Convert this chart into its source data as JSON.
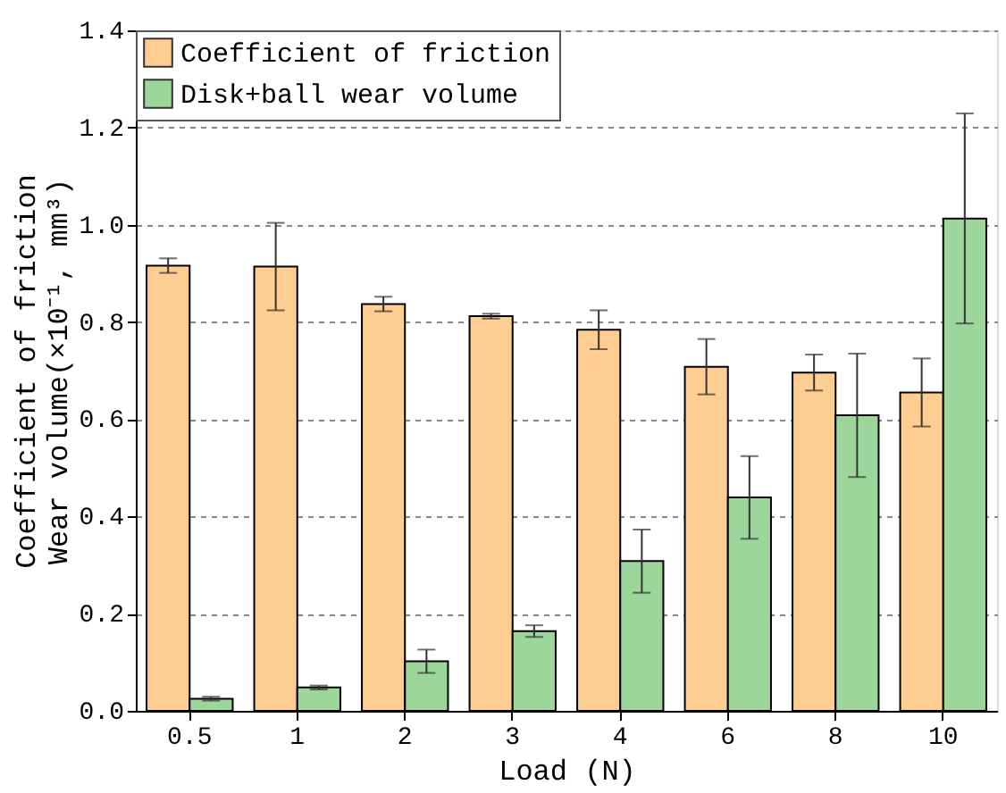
{
  "chart_data": {
    "type": "bar",
    "xlabel": "Load (N)",
    "ylabel": "Coefficient of friction\nWear volume(×10⁻¹, mm³)",
    "categories": [
      "0.5",
      "1",
      "2",
      "3",
      "4",
      "6",
      "8",
      "10"
    ],
    "series": [
      {
        "name": "Coefficient of friction",
        "color": "#fdcd92",
        "values": [
          0.916,
          0.914,
          0.837,
          0.812,
          0.784,
          0.708,
          0.696,
          0.655
        ],
        "errors": [
          0.015,
          0.09,
          0.015,
          0.005,
          0.04,
          0.057,
          0.037,
          0.07
        ]
      },
      {
        "name": "Disk+ball wear volume",
        "color": "#9dd69a",
        "values": [
          0.025,
          0.048,
          0.102,
          0.164,
          0.308,
          0.439,
          0.608,
          1.013
        ],
        "errors": [
          0.004,
          0.004,
          0.024,
          0.012,
          0.065,
          0.085,
          0.127,
          0.216
        ]
      }
    ],
    "ylim": [
      0,
      1.4
    ],
    "yticks": [
      {
        "value": 0,
        "label": "0.0"
      },
      {
        "value": 0.2,
        "label": "0.2"
      },
      {
        "value": 0.4,
        "label": "0.4"
      },
      {
        "value": 0.6,
        "label": "0.6"
      },
      {
        "value": 0.8,
        "label": "0.8"
      },
      {
        "value": 1,
        "label": "1.0"
      },
      {
        "value": 1.2,
        "label": "1.2"
      },
      {
        "value": 1.4,
        "label": "1.4"
      }
    ],
    "grid": "y",
    "legend": "top left"
  }
}
